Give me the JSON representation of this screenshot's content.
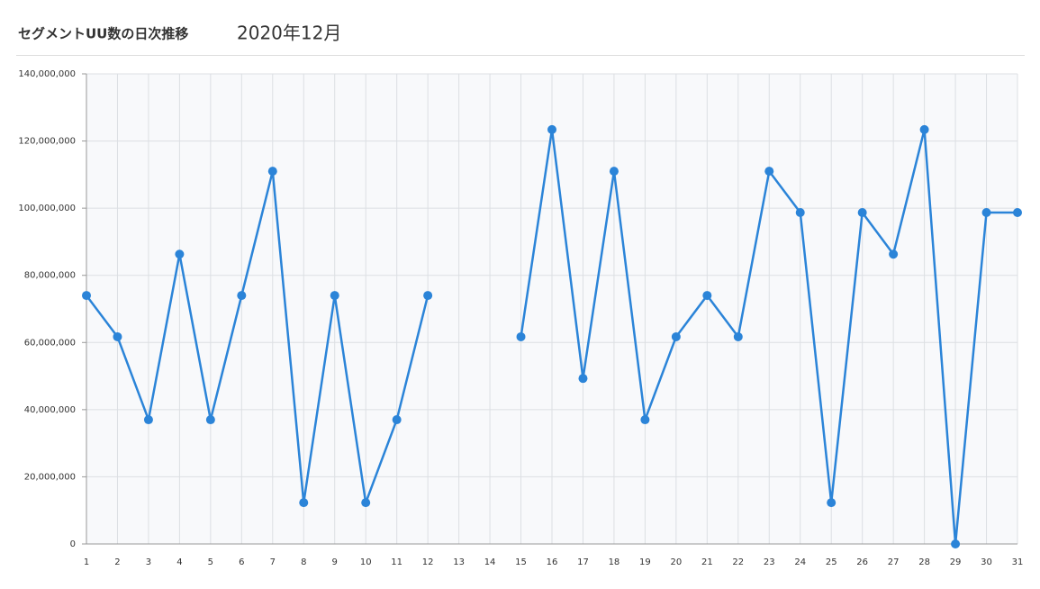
{
  "chart_data": {
    "type": "line",
    "title": "セグメントUU数の日次推移",
    "subtitle": "2020年12月",
    "categories": [
      "1",
      "2",
      "3",
      "4",
      "5",
      "6",
      "7",
      "8",
      "9",
      "10",
      "11",
      "12",
      "13",
      "14",
      "15",
      "16",
      "17",
      "18",
      "19",
      "20",
      "21",
      "22",
      "23",
      "24",
      "25",
      "26",
      "27",
      "28",
      "29",
      "30",
      "31"
    ],
    "series": [
      {
        "name": "UU",
        "color": "#2b84d8",
        "values": [
          74000000,
          61700000,
          37000000,
          86300000,
          37000000,
          74000000,
          111000000,
          12300000,
          74000000,
          12300000,
          37000000,
          74000000,
          null,
          null,
          61700000,
          123400000,
          49300000,
          111000000,
          37000000,
          61700000,
          74000000,
          61700000,
          111000000,
          98700000,
          12300000,
          98700000,
          86300000,
          123400000,
          0,
          98700000,
          98700000
        ]
      }
    ],
    "ylim": [
      0,
      140000000
    ],
    "yticks": [
      {
        "value": 0,
        "label": "0"
      },
      {
        "value": 20000000,
        "label": "20,000,000"
      },
      {
        "value": 40000000,
        "label": "40,000,000"
      },
      {
        "value": 60000000,
        "label": "60,000,000"
      },
      {
        "value": 80000000,
        "label": "80,000,000"
      },
      {
        "value": 100000000,
        "label": "100,000,000"
      },
      {
        "value": 120000000,
        "label": "120,000,000"
      },
      {
        "value": 140000000,
        "label": "140,000,000"
      }
    ],
    "grid": true
  }
}
